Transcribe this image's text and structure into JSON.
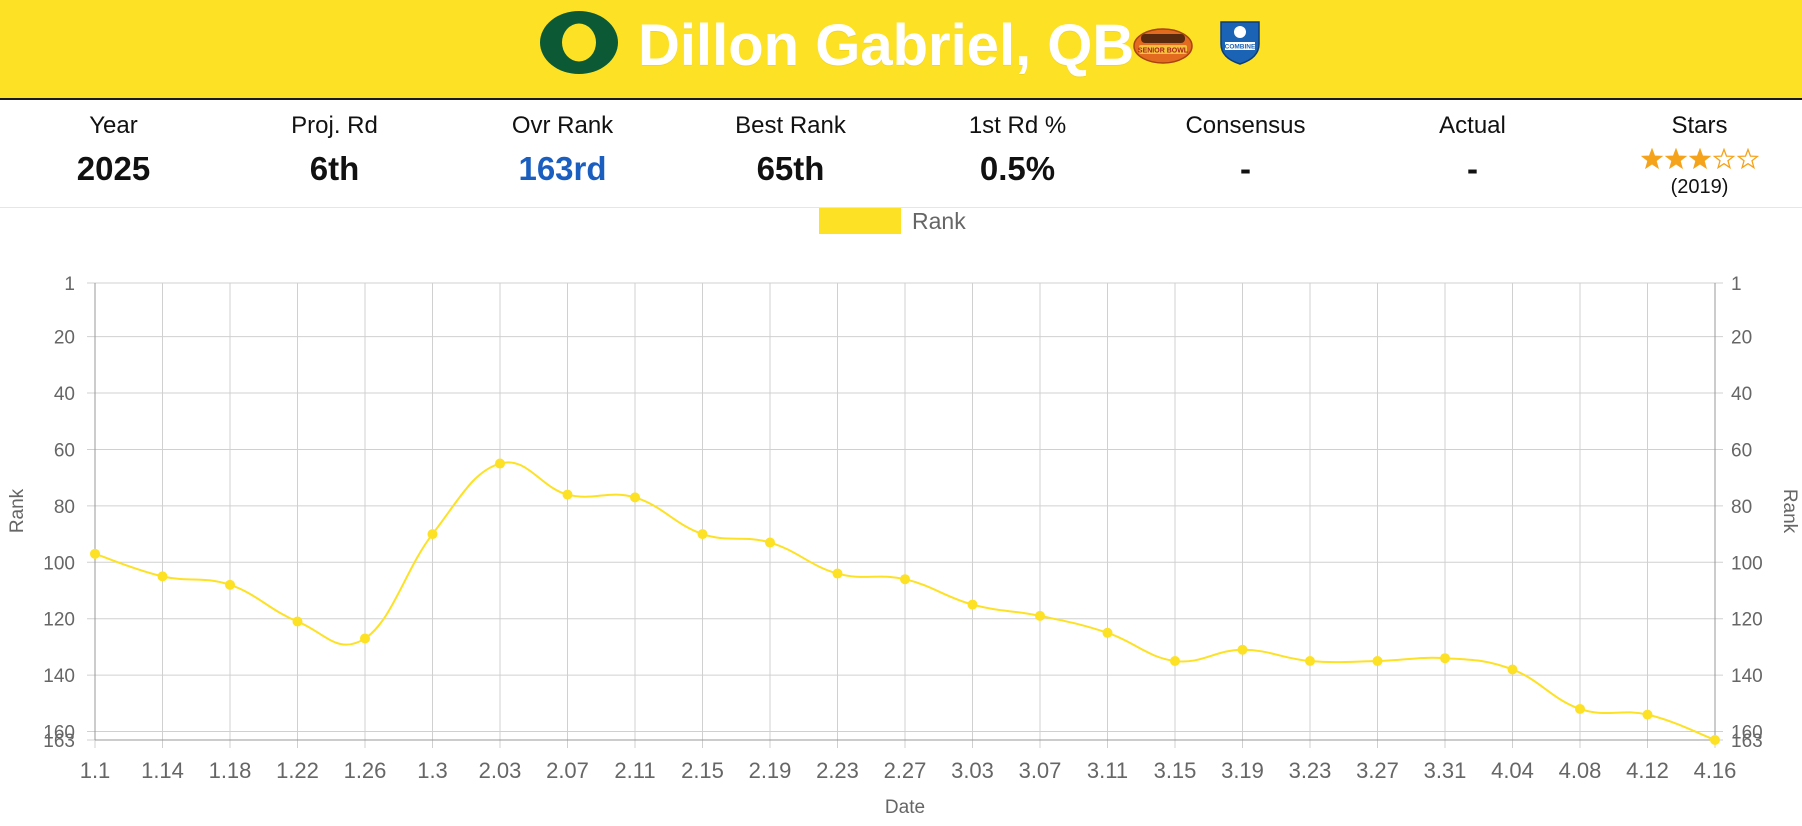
{
  "header": {
    "player_name": "Dillon Gabriel, QB",
    "background_color": "#fde125",
    "logo_color": "#0b5a35",
    "badges": [
      {
        "name": "reeses-senior-bowl-badge",
        "icon": "reeses-senior-bowl-logo",
        "text": "SENIOR BOWL"
      },
      {
        "name": "nfl-combine-badge",
        "icon": "nfl-combine-logo",
        "text": "COMBINE"
      }
    ]
  },
  "stats": [
    {
      "label": "Year",
      "value": "2025"
    },
    {
      "label": "Proj. Rd",
      "value": "6th"
    },
    {
      "label": "Ovr Rank",
      "value": "163rd",
      "highlight": true
    },
    {
      "label": "Best Rank",
      "value": "65th"
    },
    {
      "label": "1st Rd %",
      "value": "0.5%"
    },
    {
      "label": "Consensus",
      "value": "-"
    },
    {
      "label": "Actual",
      "value": "-"
    },
    {
      "label": "Stars",
      "stars": 3,
      "max_stars": 5,
      "year": "(2019)"
    }
  ],
  "colors": {
    "star": "#f5a31a",
    "line": "#fde125",
    "grid": "#d0d0d0",
    "axis_text": "#666666",
    "rank_value": "#1a5fc0"
  },
  "chart_data": {
    "type": "line",
    "title": "",
    "legend": [
      "Rank"
    ],
    "legend_position": "top",
    "xlabel": "Date",
    "ylabel": "Rank",
    "ylabel_right": "Rank",
    "y_reversed": true,
    "ylim": [
      1,
      163
    ],
    "yticks": [
      1,
      20,
      40,
      60,
      80,
      100,
      120,
      140,
      160,
      163
    ],
    "grid": true,
    "categories": [
      "1.1",
      "1.14",
      "1.18",
      "1.22",
      "1.26",
      "1.3",
      "2.03",
      "2.07",
      "2.11",
      "2.15",
      "2.19",
      "2.23",
      "2.27",
      "3.03",
      "3.07",
      "3.11",
      "3.15",
      "3.19",
      "3.23",
      "3.27",
      "3.31",
      "4.04",
      "4.08",
      "4.12",
      "4.16"
    ],
    "series": [
      {
        "name": "Rank",
        "values": [
          97,
          105,
          108,
          121,
          127,
          90,
          65,
          76,
          77,
          90,
          93,
          104,
          106,
          115,
          119,
          125,
          135,
          131,
          135,
          135,
          134,
          138,
          152,
          154,
          163
        ]
      }
    ]
  }
}
